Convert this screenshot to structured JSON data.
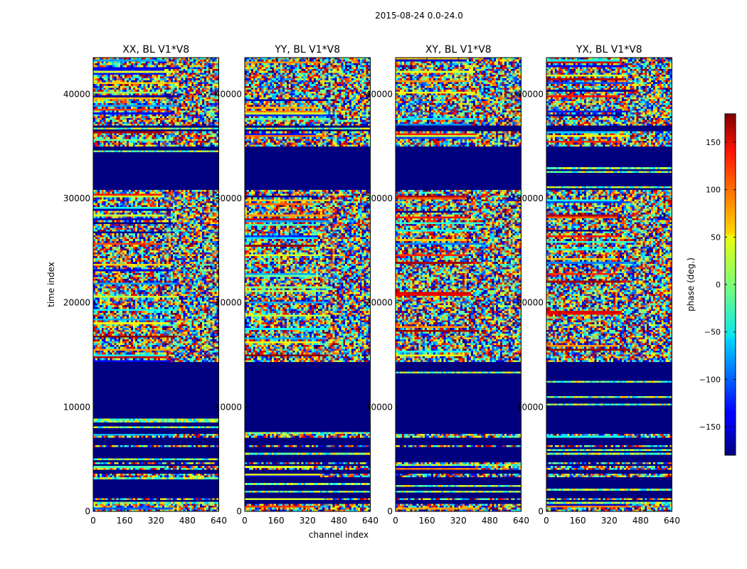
{
  "figure_title": "2015-08-24 0.0-24.0",
  "colors": {
    "background": "#ffffff",
    "axis": "#000000",
    "fill_low": "#00007f"
  },
  "chart_data": {
    "type": "heatmap",
    "suptitle": "2015-08-24 0.0-24.0",
    "xlabel": "channel index",
    "ylabel": "time index",
    "xlim": [
      0,
      640
    ],
    "ylim": [
      0,
      43500
    ],
    "xticks": [
      0,
      160,
      320,
      480,
      640
    ],
    "yticks": [
      0,
      10000,
      20000,
      30000,
      40000
    ],
    "colormap": "jet",
    "colorbar": {
      "label": "phase (deg.)",
      "range": [
        -180,
        180
      ],
      "ticks": [
        -150,
        -100,
        -50,
        0,
        50,
        100,
        150
      ]
    },
    "panels": [
      {
        "title": "XX, BL V1*V8"
      },
      {
        "title": "YY, BL V1*V8"
      },
      {
        "title": "XY, BL V1*V8"
      },
      {
        "title": "YX, BL V1*V8"
      }
    ],
    "uniform_low_regions": [
      [
        700,
        1000
      ],
      [
        1200,
        3300
      ],
      [
        3700,
        3900
      ],
      [
        4300,
        4500
      ],
      [
        4800,
        6100
      ],
      [
        6300,
        7100
      ],
      [
        7400,
        14300
      ],
      [
        30900,
        35000
      ],
      [
        36500,
        37000
      ]
    ]
  }
}
